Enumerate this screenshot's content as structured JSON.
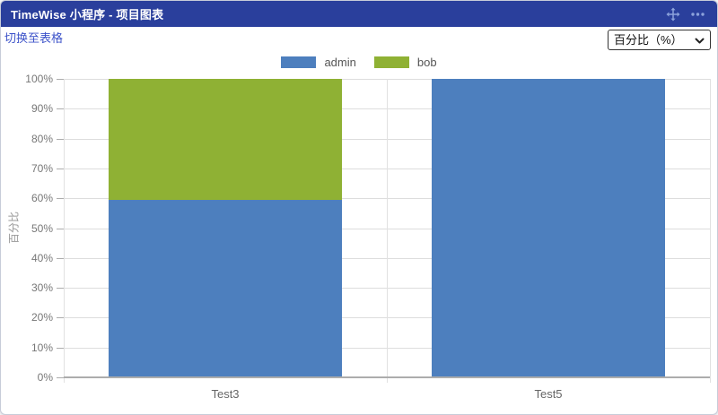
{
  "page": {
    "background": "#F5F6F8"
  },
  "widget": {
    "title": "TimeWise 小程序 - 项目图表",
    "header_color": "#2A3F9C",
    "icons": {
      "move_icon": "✥",
      "ellipsis_icon": "•••"
    }
  },
  "toolbar": {
    "switch_link": "切换至表格",
    "unit_select": {
      "value": "百分比（%）",
      "options": [
        "百分比（%）"
      ]
    }
  },
  "chart_data": {
    "type": "bar",
    "stacked": true,
    "categories": [
      "Test3",
      "Test5"
    ],
    "series": [
      {
        "name": "admin",
        "color": "#4D7FBE",
        "values": [
          59.5,
          100
        ]
      },
      {
        "name": "bob",
        "color": "#8FB134",
        "values": [
          40.5,
          0
        ]
      }
    ],
    "title": "",
    "xlabel": "",
    "ylabel": "百分比",
    "ylim": [
      0,
      100
    ],
    "ytick_step": 10,
    "ytick_suffix": "%",
    "legend_position": "top-center",
    "grid": true,
    "colors": {
      "gridline": "#DDDDDD",
      "category_separator": "#E1E1E1",
      "axis_line": "#ACACAC",
      "tick_text": "#777777",
      "category_text": "#666666",
      "axis_title_text": "#999999"
    }
  }
}
